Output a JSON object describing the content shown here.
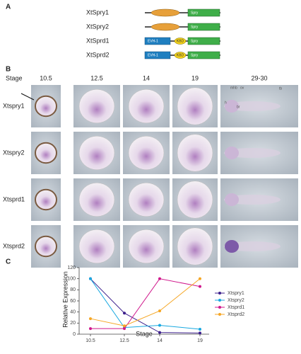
{
  "panel_a": {
    "label": "A",
    "proteins": [
      {
        "name": "XtSpry1",
        "domains": [
          "Spry"
        ]
      },
      {
        "name": "XtSpry2",
        "domains": [
          "Spry"
        ]
      },
      {
        "name": "XtSprd1",
        "domains": [
          "EVH-1",
          "KBD",
          "Spry"
        ]
      },
      {
        "name": "XtSprd2",
        "domains": [
          "EVH-1",
          "KBD",
          "Spry"
        ]
      }
    ]
  },
  "panel_b": {
    "label": "B",
    "stage_label": "Stage",
    "stages": [
      "10.5",
      "12.5",
      "14",
      "19",
      "29-30"
    ],
    "rows": [
      "Xtspry1",
      "Xtspry2",
      "Xtsprd1",
      "Xtsprd2"
    ],
    "annotations": [
      "mhb",
      "ov",
      "h",
      "br",
      "tb"
    ]
  },
  "chart_data": {
    "type": "line",
    "label": "C",
    "xlabel": "Stage",
    "ylabel": "Relative Expression",
    "categories": [
      "10.5",
      "12.5",
      "14",
      "19"
    ],
    "ylim": [
      0,
      120
    ],
    "yticks": [
      0,
      20,
      40,
      60,
      80,
      100,
      120
    ],
    "series": [
      {
        "name": "Xtspry1",
        "color": "#3c1f8c",
        "values": [
          100,
          38,
          3,
          2
        ]
      },
      {
        "name": "Xtspry2",
        "color": "#18a8e0",
        "values": [
          100,
          12,
          16,
          9
        ]
      },
      {
        "name": "Xtsprd1",
        "color": "#d0188c",
        "values": [
          10,
          10,
          100,
          86
        ]
      },
      {
        "name": "Xtsprd2",
        "color": "#f5a623",
        "values": [
          28,
          15,
          42,
          100
        ]
      }
    ]
  }
}
